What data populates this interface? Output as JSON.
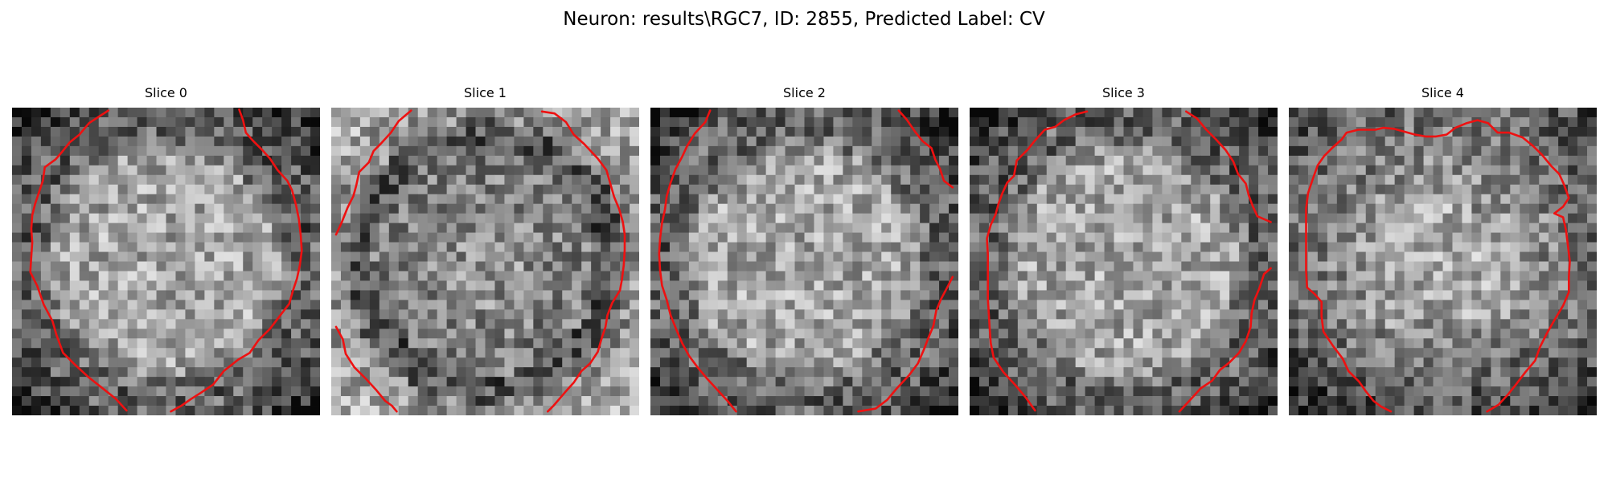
{
  "figure": {
    "title": "Neuron: results\\RGC7, ID: 2855, Predicted Label: CV"
  },
  "panels": [
    {
      "title": "Slice 0",
      "shape": "round",
      "seed": 11
    },
    {
      "title": "Slice 1",
      "shape": "dark-center",
      "seed": 23
    },
    {
      "title": "Slice 2",
      "shape": "round",
      "seed": 37
    },
    {
      "title": "Slice 3",
      "shape": "round",
      "seed": 53
    },
    {
      "title": "Slice 4",
      "shape": "bright-upper",
      "seed": 71
    }
  ],
  "colors": {
    "contour": "#ee1111"
  }
}
